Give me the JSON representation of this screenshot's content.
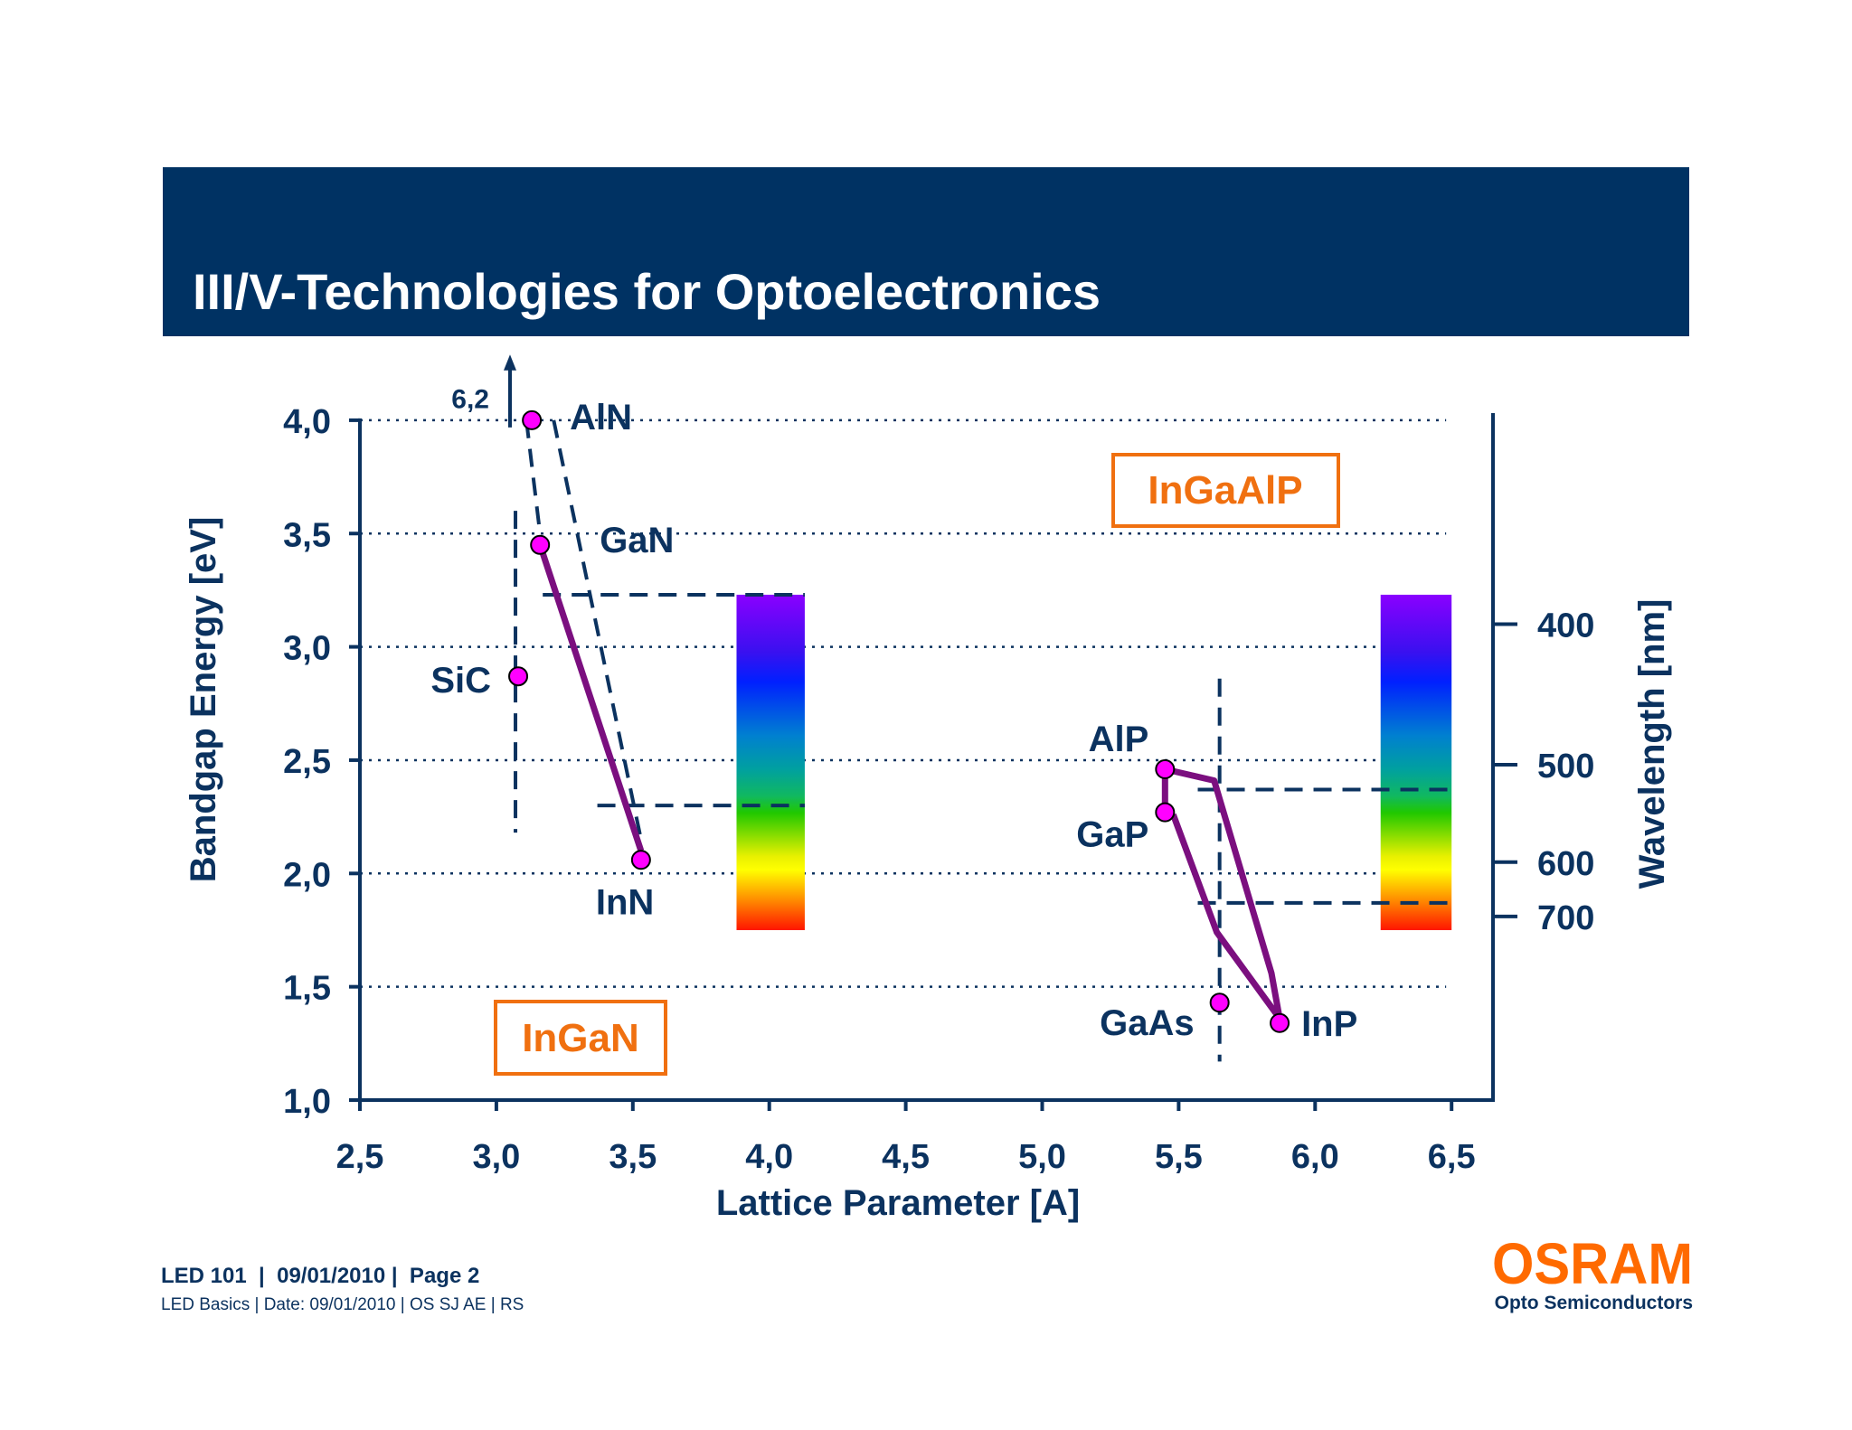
{
  "slide": {
    "title": "III/V-Technologies for Optoelectronics",
    "footer_line1": "LED 101  |  09/01/2010 |  Page 2",
    "footer_line2": "LED Basics | Date: 09/01/2010 | OS SJ AE | RS",
    "logo_text": "OSRAM",
    "logo_sub": "Opto Semiconductors",
    "colors": {
      "header_bg": "#003263",
      "text": "#0b325f",
      "accent": "#f07010",
      "curve": "#7b0f7f",
      "marker": "#ff00ff"
    }
  },
  "chart_data": {
    "type": "scatter",
    "xlabel": "Lattice Parameter [A]",
    "ylabel": "Bandgap Energy  [eV]",
    "y2label": "Wavelength  [nm]",
    "xlim": [
      2.5,
      6.5
    ],
    "ylim": [
      1.0,
      4.0
    ],
    "x_ticks": [
      "2,5",
      "3,0",
      "3,5",
      "4,0",
      "4,5",
      "5,0",
      "5,5",
      "6,0",
      "6,5"
    ],
    "x_tick_values": [
      2.5,
      3.0,
      3.5,
      4.0,
      4.5,
      5.0,
      5.5,
      6.0,
      6.5
    ],
    "y_ticks": [
      "1,0",
      "1,5",
      "2,0",
      "2,5",
      "3,0",
      "3,5",
      "4,0"
    ],
    "y_tick_values": [
      1.0,
      1.5,
      2.0,
      2.5,
      3.0,
      3.5,
      4.0
    ],
    "y2_ticks": [
      {
        "label": "400",
        "energy": 3.1
      },
      {
        "label": "500",
        "energy": 2.48
      },
      {
        "label": "600",
        "energy": 2.05
      },
      {
        "label": "700",
        "energy": 1.81
      }
    ],
    "grid": "horizontal dotted",
    "points": [
      {
        "label": "AlN",
        "x": 3.13,
        "y": 4.0
      },
      {
        "label": "GaN",
        "x": 3.16,
        "y": 3.45
      },
      {
        "label": "SiC",
        "x": 3.08,
        "y": 2.87
      },
      {
        "label": "InN",
        "x": 3.53,
        "y": 2.06
      },
      {
        "label": "AlP",
        "x": 5.45,
        "y": 2.46
      },
      {
        "label": "GaP",
        "x": 5.45,
        "y": 2.27
      },
      {
        "label": "GaAs",
        "x": 5.65,
        "y": 1.43
      },
      {
        "label": "InP",
        "x": 5.87,
        "y": 1.34
      }
    ],
    "off_scale_annotation": {
      "label": "6,2",
      "x": 3.05
    },
    "curves_solid": [
      [
        [
          3.16,
          3.45
        ],
        [
          3.53,
          2.1
        ]
      ],
      [
        [
          5.45,
          2.27
        ],
        [
          5.45,
          2.46
        ],
        [
          5.63,
          2.41
        ],
        [
          5.84,
          1.56
        ],
        [
          5.87,
          1.36
        ],
        [
          5.64,
          1.74
        ],
        [
          5.48,
          2.26
        ]
      ]
    ],
    "curves_dashed": [
      [
        [
          3.11,
          4.0
        ],
        [
          3.16,
          3.5
        ]
      ],
      [
        [
          3.21,
          4.0
        ],
        [
          3.53,
          2.15
        ]
      ],
      [
        [
          3.07,
          3.6
        ],
        [
          3.07,
          2.18
        ]
      ],
      [
        [
          5.65,
          2.86
        ],
        [
          5.65,
          1.17
        ]
      ],
      [
        [
          3.17,
          3.23
        ],
        [
          4.13,
          3.23
        ]
      ],
      [
        [
          3.37,
          2.3
        ],
        [
          4.13,
          2.3
        ]
      ],
      [
        [
          5.57,
          2.37
        ],
        [
          6.5,
          2.37
        ]
      ],
      [
        [
          5.57,
          1.87
        ],
        [
          6.5,
          1.87
        ]
      ]
    ],
    "spectrum_bars": [
      {
        "x0": 3.88,
        "x1": 4.13,
        "y0": 1.75,
        "y1": 3.23
      },
      {
        "x0": 6.24,
        "x1": 6.5,
        "y0": 1.75,
        "y1": 3.23
      }
    ],
    "region_labels": [
      "InGaAlP",
      "InGaN"
    ]
  }
}
